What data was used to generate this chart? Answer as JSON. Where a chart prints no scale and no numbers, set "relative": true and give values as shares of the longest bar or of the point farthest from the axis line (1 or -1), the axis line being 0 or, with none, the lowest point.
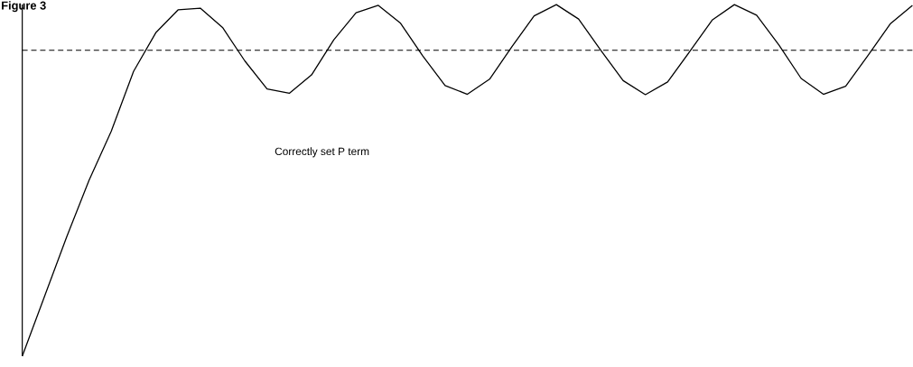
{
  "chart_data": {
    "type": "line",
    "title": "Figure 3",
    "relative": true,
    "color": "#000000",
    "line_style": "solid",
    "categories": [
      null,
      null,
      null,
      null,
      null,
      null,
      null,
      null,
      null,
      null,
      null,
      null,
      null,
      null,
      null,
      null,
      null,
      null,
      null,
      null,
      null,
      null,
      null,
      null,
      null,
      null,
      null,
      null,
      null,
      null,
      null,
      null,
      null,
      null,
      null,
      null,
      null,
      null,
      null,
      null,
      null
    ],
    "values": [
      0,
      0.17,
      0.34,
      0.5,
      0.64,
      0.81,
      0.92,
      0.985,
      0.99,
      0.935,
      0.84,
      0.76,
      0.748,
      0.8,
      0.9,
      0.977,
      0.998,
      0.947,
      0.854,
      0.77,
      0.745,
      0.788,
      0.88,
      0.968,
      1,
      0.959,
      0.87,
      0.784,
      0.744,
      0.78,
      0.867,
      0.956,
      1,
      0.97,
      0.885,
      0.79,
      0.745,
      0.768,
      0.855,
      0.945,
      0.998
    ],
    "ref_lines": [
      {
        "axis": "y",
        "value": 0.87,
        "color": "#000000",
        "line_style": "dashed"
      }
    ],
    "annotations": [
      "Correctly set P term"
    ]
  }
}
